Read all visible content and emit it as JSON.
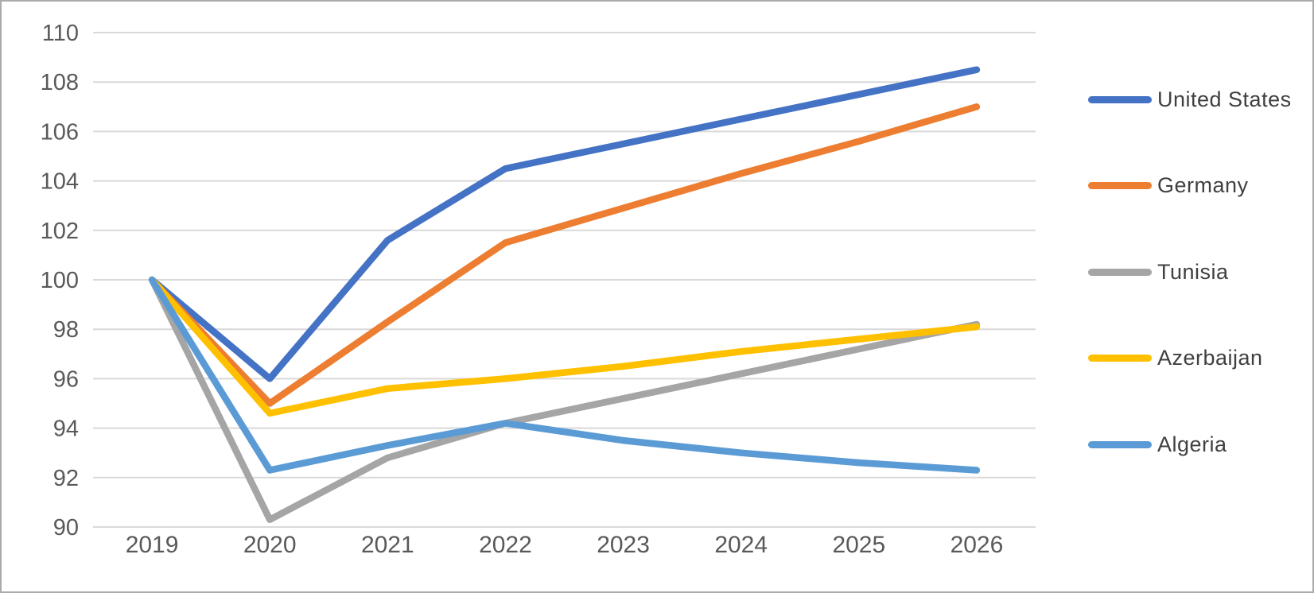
{
  "chart_data": {
    "type": "line",
    "title": "",
    "xlabel": "",
    "ylabel": "",
    "x": [
      "2019",
      "2020",
      "2021",
      "2022",
      "2023",
      "2024",
      "2025",
      "2026"
    ],
    "series": [
      {
        "name": "United States",
        "color": "#4472C4",
        "values": [
          100,
          96.0,
          101.6,
          104.5,
          105.5,
          106.5,
          107.5,
          108.5
        ]
      },
      {
        "name": "Germany",
        "color": "#ED7D31",
        "values": [
          100,
          95.0,
          98.3,
          101.5,
          102.9,
          104.3,
          105.6,
          107.0
        ]
      },
      {
        "name": "Tunisia",
        "color": "#A5A5A5",
        "values": [
          100,
          90.3,
          92.8,
          94.2,
          95.2,
          96.2,
          97.2,
          98.2
        ]
      },
      {
        "name": "Azerbaijan",
        "color": "#FFC000",
        "values": [
          100,
          94.6,
          95.6,
          96.0,
          96.5,
          97.1,
          97.6,
          98.1
        ]
      },
      {
        "name": "Algeria",
        "color": "#5B9BD5",
        "values": [
          100,
          92.3,
          93.3,
          94.2,
          93.5,
          93.0,
          92.6,
          92.3
        ]
      }
    ],
    "ylim": [
      90,
      110
    ],
    "ytick_step": 2,
    "ytick_labels": [
      "90",
      "92",
      "94",
      "96",
      "98",
      "100",
      "102",
      "104",
      "106",
      "108",
      "110"
    ],
    "grid": true,
    "legend_position": "right"
  },
  "styles": {
    "background_color": "#FFFFFF",
    "border_color": "#ABABAB",
    "grid_color": "#D9D9D9",
    "axis_text_color": "#595959",
    "legend_text_color": "#404040"
  }
}
